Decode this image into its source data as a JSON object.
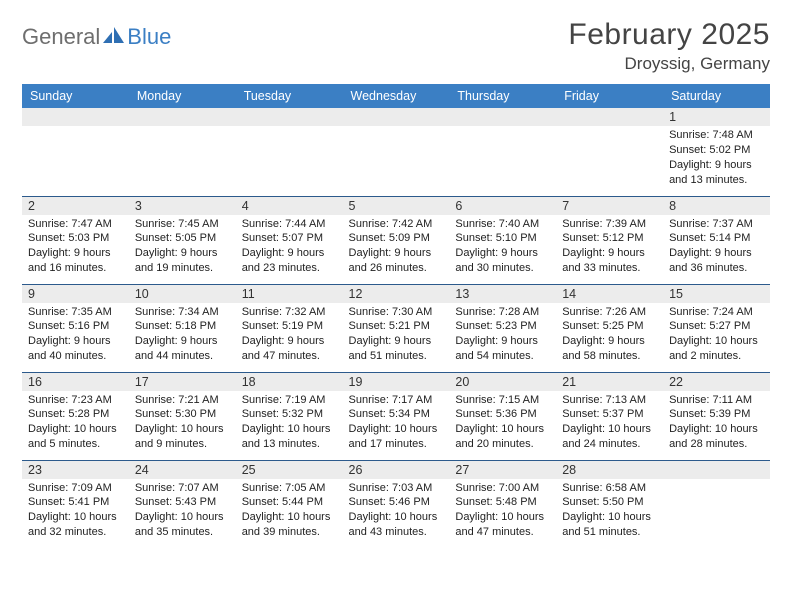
{
  "brand": {
    "part1": "General",
    "part2": "Blue",
    "icon_color": "#2f6fb3"
  },
  "title": {
    "month": "February 2025",
    "location": "Droyssig, Germany"
  },
  "colors": {
    "header_bg": "#3b7fc4",
    "header_text": "#ffffff",
    "row_divider": "#2c5a8c",
    "daynum_bg": "#ececec",
    "text": "#222222"
  },
  "typography": {
    "title_fontsize": 30,
    "location_fontsize": 17,
    "dayheader_fontsize": 12.5,
    "body_fontsize": 11
  },
  "day_headers": [
    "Sunday",
    "Monday",
    "Tuesday",
    "Wednesday",
    "Thursday",
    "Friday",
    "Saturday"
  ],
  "weeks": [
    [
      {
        "n": "",
        "lines": []
      },
      {
        "n": "",
        "lines": []
      },
      {
        "n": "",
        "lines": []
      },
      {
        "n": "",
        "lines": []
      },
      {
        "n": "",
        "lines": []
      },
      {
        "n": "",
        "lines": []
      },
      {
        "n": "1",
        "lines": [
          "Sunrise: 7:48 AM",
          "Sunset: 5:02 PM",
          "Daylight: 9 hours",
          "and 13 minutes."
        ]
      }
    ],
    [
      {
        "n": "2",
        "lines": [
          "Sunrise: 7:47 AM",
          "Sunset: 5:03 PM",
          "Daylight: 9 hours",
          "and 16 minutes."
        ]
      },
      {
        "n": "3",
        "lines": [
          "Sunrise: 7:45 AM",
          "Sunset: 5:05 PM",
          "Daylight: 9 hours",
          "and 19 minutes."
        ]
      },
      {
        "n": "4",
        "lines": [
          "Sunrise: 7:44 AM",
          "Sunset: 5:07 PM",
          "Daylight: 9 hours",
          "and 23 minutes."
        ]
      },
      {
        "n": "5",
        "lines": [
          "Sunrise: 7:42 AM",
          "Sunset: 5:09 PM",
          "Daylight: 9 hours",
          "and 26 minutes."
        ]
      },
      {
        "n": "6",
        "lines": [
          "Sunrise: 7:40 AM",
          "Sunset: 5:10 PM",
          "Daylight: 9 hours",
          "and 30 minutes."
        ]
      },
      {
        "n": "7",
        "lines": [
          "Sunrise: 7:39 AM",
          "Sunset: 5:12 PM",
          "Daylight: 9 hours",
          "and 33 minutes."
        ]
      },
      {
        "n": "8",
        "lines": [
          "Sunrise: 7:37 AM",
          "Sunset: 5:14 PM",
          "Daylight: 9 hours",
          "and 36 minutes."
        ]
      }
    ],
    [
      {
        "n": "9",
        "lines": [
          "Sunrise: 7:35 AM",
          "Sunset: 5:16 PM",
          "Daylight: 9 hours",
          "and 40 minutes."
        ]
      },
      {
        "n": "10",
        "lines": [
          "Sunrise: 7:34 AM",
          "Sunset: 5:18 PM",
          "Daylight: 9 hours",
          "and 44 minutes."
        ]
      },
      {
        "n": "11",
        "lines": [
          "Sunrise: 7:32 AM",
          "Sunset: 5:19 PM",
          "Daylight: 9 hours",
          "and 47 minutes."
        ]
      },
      {
        "n": "12",
        "lines": [
          "Sunrise: 7:30 AM",
          "Sunset: 5:21 PM",
          "Daylight: 9 hours",
          "and 51 minutes."
        ]
      },
      {
        "n": "13",
        "lines": [
          "Sunrise: 7:28 AM",
          "Sunset: 5:23 PM",
          "Daylight: 9 hours",
          "and 54 minutes."
        ]
      },
      {
        "n": "14",
        "lines": [
          "Sunrise: 7:26 AM",
          "Sunset: 5:25 PM",
          "Daylight: 9 hours",
          "and 58 minutes."
        ]
      },
      {
        "n": "15",
        "lines": [
          "Sunrise: 7:24 AM",
          "Sunset: 5:27 PM",
          "Daylight: 10 hours",
          "and 2 minutes."
        ]
      }
    ],
    [
      {
        "n": "16",
        "lines": [
          "Sunrise: 7:23 AM",
          "Sunset: 5:28 PM",
          "Daylight: 10 hours",
          "and 5 minutes."
        ]
      },
      {
        "n": "17",
        "lines": [
          "Sunrise: 7:21 AM",
          "Sunset: 5:30 PM",
          "Daylight: 10 hours",
          "and 9 minutes."
        ]
      },
      {
        "n": "18",
        "lines": [
          "Sunrise: 7:19 AM",
          "Sunset: 5:32 PM",
          "Daylight: 10 hours",
          "and 13 minutes."
        ]
      },
      {
        "n": "19",
        "lines": [
          "Sunrise: 7:17 AM",
          "Sunset: 5:34 PM",
          "Daylight: 10 hours",
          "and 17 minutes."
        ]
      },
      {
        "n": "20",
        "lines": [
          "Sunrise: 7:15 AM",
          "Sunset: 5:36 PM",
          "Daylight: 10 hours",
          "and 20 minutes."
        ]
      },
      {
        "n": "21",
        "lines": [
          "Sunrise: 7:13 AM",
          "Sunset: 5:37 PM",
          "Daylight: 10 hours",
          "and 24 minutes."
        ]
      },
      {
        "n": "22",
        "lines": [
          "Sunrise: 7:11 AM",
          "Sunset: 5:39 PM",
          "Daylight: 10 hours",
          "and 28 minutes."
        ]
      }
    ],
    [
      {
        "n": "23",
        "lines": [
          "Sunrise: 7:09 AM",
          "Sunset: 5:41 PM",
          "Daylight: 10 hours",
          "and 32 minutes."
        ]
      },
      {
        "n": "24",
        "lines": [
          "Sunrise: 7:07 AM",
          "Sunset: 5:43 PM",
          "Daylight: 10 hours",
          "and 35 minutes."
        ]
      },
      {
        "n": "25",
        "lines": [
          "Sunrise: 7:05 AM",
          "Sunset: 5:44 PM",
          "Daylight: 10 hours",
          "and 39 minutes."
        ]
      },
      {
        "n": "26",
        "lines": [
          "Sunrise: 7:03 AM",
          "Sunset: 5:46 PM",
          "Daylight: 10 hours",
          "and 43 minutes."
        ]
      },
      {
        "n": "27",
        "lines": [
          "Sunrise: 7:00 AM",
          "Sunset: 5:48 PM",
          "Daylight: 10 hours",
          "and 47 minutes."
        ]
      },
      {
        "n": "28",
        "lines": [
          "Sunrise: 6:58 AM",
          "Sunset: 5:50 PM",
          "Daylight: 10 hours",
          "and 51 minutes."
        ]
      },
      {
        "n": "",
        "lines": []
      }
    ]
  ]
}
